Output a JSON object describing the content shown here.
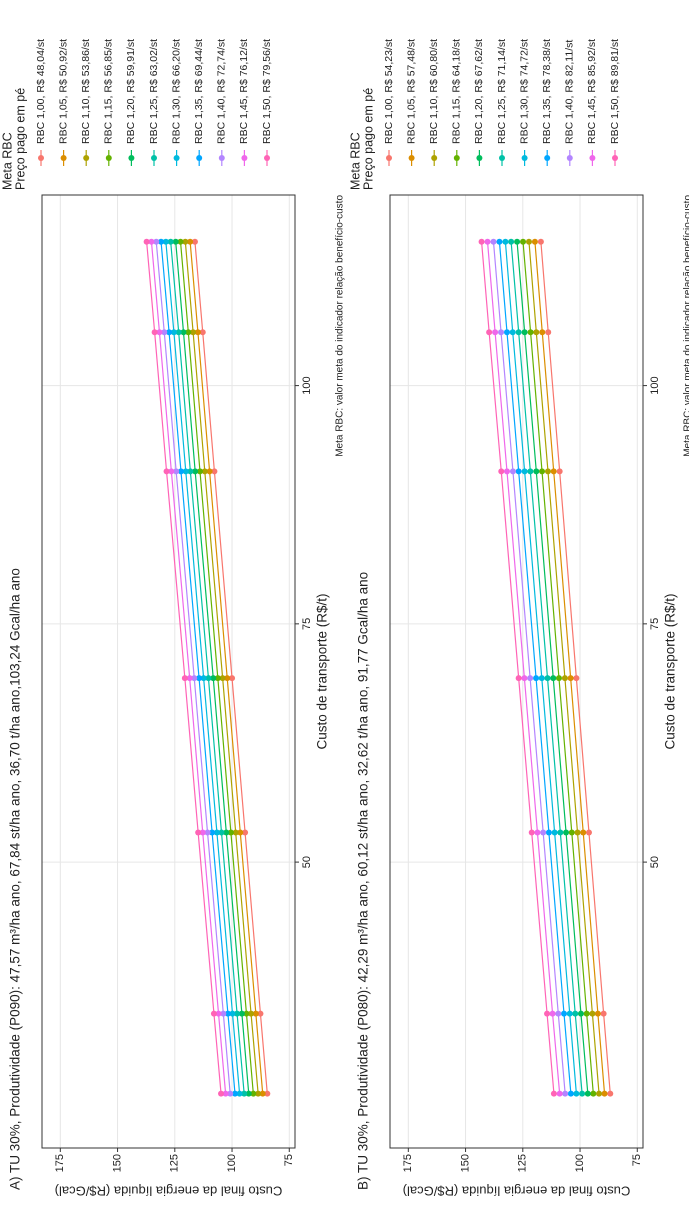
{
  "chart_data": [
    {
      "type": "line",
      "title": "A) TU 30%, Produtividade (P090): 47,57 m³/ha ano, 67,84 st/ha ano, 36,70 t/ha ano,103,24 Gcal/ha ano",
      "x_label": "Custo de transporte (R$/t)",
      "y_label": "Custo final da energia líquida (R$/Gcal)",
      "caption": "Meta RBC: valor meta do indicador relação benefício-custo",
      "legend_title": [
        "Meta RBC",
        "Preço pago em pé"
      ],
      "xlim": [
        20,
        120
      ],
      "ylim": [
        72.5,
        183
      ],
      "xticks": [
        50,
        75,
        100
      ],
      "yticks": [
        75,
        100,
        125,
        150,
        175
      ],
      "grid": true,
      "x": [
        25.7,
        34.1,
        53.1,
        69.3,
        91.0,
        105.6,
        115.1
      ],
      "series": [
        {
          "name": "RBC 1,00, R$ 48,04/st",
          "color": "#F8766D",
          "values": [
            84.6,
            87.6,
            94.3,
            100.0,
            107.7,
            112.8,
            116.2
          ]
        },
        {
          "name": "RBC 1,05, R$ 50,92/st",
          "color": "#DB8E00",
          "values": [
            86.6,
            89.6,
            96.4,
            102.1,
            109.8,
            114.9,
            118.3
          ]
        },
        {
          "name": "RBC 1,10, R$ 53,86/st",
          "color": "#AEA200",
          "values": [
            88.6,
            91.7,
            98.4,
            104.1,
            111.9,
            117.0,
            120.4
          ]
        },
        {
          "name": "RBC 1,15, R$ 56,85/st",
          "color": "#64B200",
          "values": [
            90.7,
            93.7,
            100.5,
            106.2,
            114.0,
            119.1,
            122.5
          ]
        },
        {
          "name": "RBC 1,20, R$ 59,91/st",
          "color": "#00BD5C",
          "values": [
            92.7,
            95.7,
            102.5,
            108.2,
            116.1,
            121.2,
            124.6
          ]
        },
        {
          "name": "RBC 1,25, R$ 63,02/st",
          "color": "#00C1A7",
          "values": [
            94.7,
            97.8,
            104.6,
            110.3,
            118.2,
            123.3,
            126.8
          ]
        },
        {
          "name": "RBC 1,30, R$ 66,20/st",
          "color": "#00BADE",
          "values": [
            96.7,
            99.8,
            106.6,
            112.4,
            120.2,
            125.4,
            128.9
          ]
        },
        {
          "name": "RBC 1,35, R$ 69,44/st",
          "color": "#00A6FF",
          "values": [
            98.7,
            101.8,
            108.7,
            114.4,
            122.3,
            127.5,
            131.0
          ]
        },
        {
          "name": "RBC 1,40, R$ 72,74/st",
          "color": "#B385FF",
          "values": [
            100.8,
            103.8,
            110.7,
            116.5,
            124.4,
            129.6,
            133.1
          ]
        },
        {
          "name": "RBC 1,45, R$ 76,12/st",
          "color": "#EF67EB",
          "values": [
            102.8,
            105.9,
            112.8,
            118.5,
            126.5,
            131.7,
            135.2
          ]
        },
        {
          "name": "RBC 1,50, R$ 79,56/st",
          "color": "#FF63B6",
          "values": [
            104.8,
            107.9,
            114.8,
            120.6,
            128.6,
            133.8,
            137.3
          ]
        }
      ]
    },
    {
      "type": "line",
      "title": "B) TU 30%, Produtividade (P080): 42,29 m³/ha ano, 60,12 st/ha ano, 32,62 t/ha ano, 91,77 Gcal/ha ano",
      "x_label": "Custo de transporte (R$/t)",
      "y_label": "Custo final da energia líquida (R$/Gcal)",
      "caption": "Meta RBC: valor meta do indicador relação benefício-custo",
      "legend_title": [
        "Meta RBC",
        "Preço pago em pé"
      ],
      "xlim": [
        20,
        120
      ],
      "ylim": [
        72.5,
        183
      ],
      "xticks": [
        50,
        75,
        100
      ],
      "yticks": [
        75,
        100,
        125,
        150,
        175
      ],
      "grid": true,
      "x": [
        25.7,
        34.1,
        53.1,
        69.3,
        91.0,
        105.6,
        115.1
      ],
      "series": [
        {
          "name": "RBC 1,00, R$ 54,23/st",
          "color": "#F8766D",
          "values": [
            86.8,
            89.7,
            96.1,
            101.6,
            108.9,
            113.9,
            117.1
          ]
        },
        {
          "name": "RBC 1,05, R$ 57,48/st",
          "color": "#DB8E00",
          "values": [
            89.3,
            92.2,
            98.6,
            104.1,
            111.5,
            116.5,
            119.7
          ]
        },
        {
          "name": "RBC 1,10, R$ 60,80/st",
          "color": "#AEA200",
          "values": [
            91.7,
            94.6,
            101.1,
            106.6,
            114.0,
            119.1,
            122.3
          ]
        },
        {
          "name": "RBC 1,15, R$ 64,18/st",
          "color": "#64B200",
          "values": [
            94.2,
            97.1,
            103.6,
            109.2,
            116.6,
            121.6,
            124.9
          ]
        },
        {
          "name": "RBC 1,20, R$ 67,62/st",
          "color": "#00BD5C",
          "values": [
            96.6,
            99.6,
            106.1,
            111.7,
            119.1,
            124.2,
            127.5
          ]
        },
        {
          "name": "RBC 1,25, R$ 71,14/st",
          "color": "#00C1A7",
          "values": [
            99.1,
            102.1,
            108.6,
            114.2,
            121.7,
            126.8,
            130.1
          ]
        },
        {
          "name": "RBC 1,30, R$ 74,72/st",
          "color": "#00BADE",
          "values": [
            101.6,
            104.5,
            111.1,
            116.7,
            124.2,
            129.4,
            132.6
          ]
        },
        {
          "name": "RBC 1,35, R$ 78,38/st",
          "color": "#00A6FF",
          "values": [
            104.0,
            107.0,
            113.6,
            119.2,
            126.8,
            131.9,
            135.2
          ]
        },
        {
          "name": "RBC 1,40, R$ 82,11/st",
          "color": "#B385FF",
          "values": [
            106.5,
            109.5,
            116.1,
            121.8,
            129.3,
            134.5,
            137.8
          ]
        },
        {
          "name": "RBC 1,45, R$ 85,92/st",
          "color": "#EF67EB",
          "values": [
            108.9,
            112.0,
            118.6,
            124.3,
            131.9,
            137.1,
            140.4
          ]
        },
        {
          "name": "RBC 1,50, R$ 89,81/st",
          "color": "#FF63B6",
          "values": [
            111.4,
            114.4,
            121.1,
            126.8,
            134.4,
            139.7,
            143.0
          ]
        }
      ]
    }
  ]
}
